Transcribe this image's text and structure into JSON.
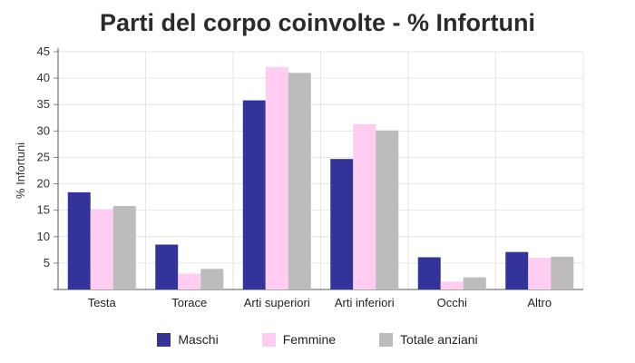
{
  "chart_data": {
    "type": "bar",
    "title": "Parti del corpo coinvolte - % Infortuni",
    "xlabel": "",
    "ylabel": "% Infortuni",
    "ylim": [
      0,
      45
    ],
    "yticks": [
      5,
      10,
      15,
      20,
      25,
      30,
      35,
      40,
      45
    ],
    "grid": true,
    "legend_position": "bottom",
    "categories": [
      "Testa",
      "Torace",
      "Arti superiori",
      "Arti inferiori",
      "Occhi",
      "Altro"
    ],
    "series": [
      {
        "name": "Maschi",
        "color": "#33339a",
        "values": [
          18.4,
          8.5,
          35.8,
          24.7,
          6.1,
          7.1
        ]
      },
      {
        "name": "Femmine",
        "color": "#ffccf2",
        "values": [
          15.2,
          3.0,
          42.1,
          31.3,
          1.5,
          6.0
        ]
      },
      {
        "name": "Totale anziani",
        "color": "#bcbcbc",
        "values": [
          15.8,
          3.9,
          41.0,
          30.1,
          2.3,
          6.2
        ]
      }
    ]
  }
}
